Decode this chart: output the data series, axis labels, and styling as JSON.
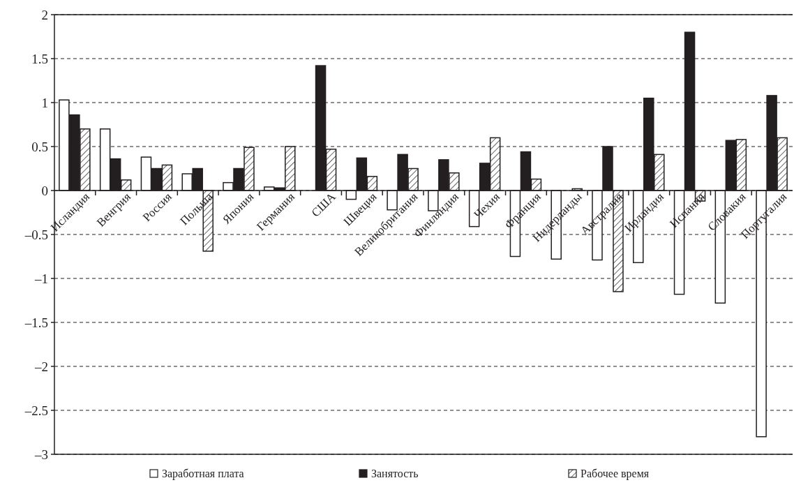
{
  "chart_data": {
    "type": "bar",
    "categories": [
      "Исландия",
      "Венгрия",
      "Россия",
      "Польша",
      "Япония",
      "Германия",
      "США",
      "Швеция",
      "Великобритания",
      "Финляндия",
      "Чехия",
      "Франция",
      "Нидерланды",
      "Австралия",
      "Ирландия",
      "Испания",
      "Словакия",
      "Португалия"
    ],
    "series": [
      {
        "name": "Заработная плата",
        "color": "#ffffff",
        "values": [
          1.03,
          0.7,
          0.38,
          0.19,
          0.09,
          0.04,
          null,
          -0.1,
          -0.22,
          -0.23,
          -0.41,
          -0.75,
          -0.78,
          -0.79,
          -0.82,
          -1.18,
          -1.28,
          -2.8
        ]
      },
      {
        "name": "Занятость",
        "color": "#231f20",
        "values": [
          0.86,
          0.36,
          0.25,
          0.25,
          0.25,
          0.03,
          1.42,
          0.37,
          0.41,
          0.35,
          0.31,
          0.44,
          null,
          0.5,
          1.05,
          1.8,
          0.57,
          1.08
        ]
      },
      {
        "name": "Рабочее время",
        "color": "#231f20",
        "values": [
          0.7,
          0.12,
          0.29,
          -0.69,
          0.49,
          0.5,
          0.47,
          0.16,
          0.25,
          0.2,
          0.6,
          0.13,
          0.02,
          -1.15,
          0.41,
          -0.12,
          0.58,
          0.6
        ]
      }
    ],
    "ylim": [
      -3,
      2
    ],
    "yticks": [
      {
        "value": -3,
        "label": "–3"
      },
      {
        "value": -2.5,
        "label": "–2.5"
      },
      {
        "value": -2,
        "label": "–2"
      },
      {
        "value": -1.5,
        "label": "–1.5"
      },
      {
        "value": -1,
        "label": "–1"
      },
      {
        "value": -0.5,
        "label": "–0.5"
      },
      0,
      0.5,
      1,
      1.5,
      2
    ],
    "grid": "y",
    "legend": "bottom"
  }
}
